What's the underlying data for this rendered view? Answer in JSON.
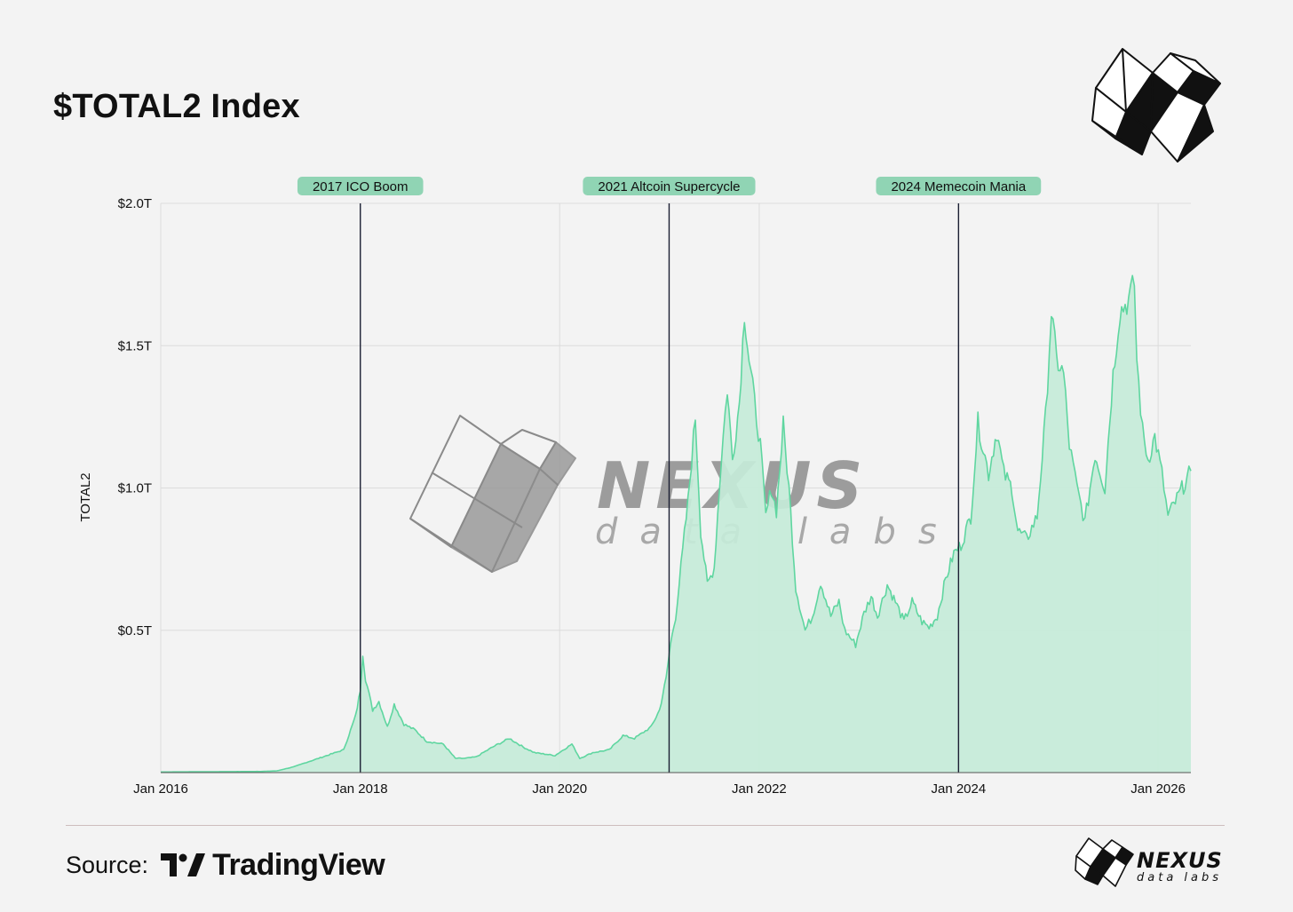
{
  "header": {
    "title": "$TOTAL2 Index"
  },
  "watermark": {
    "name": "NEXUS",
    "tagline": "data labs",
    "logo_icon": "nexus-cube-logo"
  },
  "footer": {
    "source_label": "Source:",
    "source_name": "TradingView",
    "source_icon": "tradingview-logo",
    "brand_name": "NEXUS",
    "brand_tagline": "data labs"
  },
  "colors": {
    "fill": "#c5ecd9",
    "line": "#5fd6a0",
    "annotation_bg": "#90d4b4",
    "event_line": "#1b1f33",
    "grid": "#dcdcdc"
  },
  "chart_data": {
    "type": "area",
    "title": "$TOTAL2 Index",
    "ylabel": "TOTAL2",
    "xlabel": "",
    "y_unit": "trillion USD",
    "ylim": [
      0,
      2.0
    ],
    "xlim": [
      "2016-01-01",
      "2026-05-01"
    ],
    "y_ticks": [
      {
        "value": 0.5,
        "label": "$0.5T"
      },
      {
        "value": 1.0,
        "label": "$1.0T"
      },
      {
        "value": 1.5,
        "label": "$1.5T"
      },
      {
        "value": 2.0,
        "label": "$2.0T"
      }
    ],
    "x_ticks": [
      {
        "date": "2016-01-01",
        "label": "Jan 2016"
      },
      {
        "date": "2018-01-01",
        "label": "Jan 2018"
      },
      {
        "date": "2020-01-01",
        "label": "Jan 2020"
      },
      {
        "date": "2022-01-01",
        "label": "Jan 2022"
      },
      {
        "date": "2024-01-01",
        "label": "Jan 2024"
      },
      {
        "date": "2026-01-01",
        "label": "Jan 2026"
      }
    ],
    "grid": true,
    "legend": "none",
    "annotations": [
      {
        "label": "2017 ICO Boom",
        "date": "2018-01-01"
      },
      {
        "label": "2021 Altcoin Supercycle",
        "date": "2021-02-05"
      },
      {
        "label": "2024 Memecoin Mania",
        "date": "2024-01-01"
      }
    ],
    "series": [
      {
        "points": [
          [
            "2016-01-01",
            0.002
          ],
          [
            "2016-06-01",
            0.003
          ],
          [
            "2017-01-01",
            0.004
          ],
          [
            "2017-03-01",
            0.006
          ],
          [
            "2017-05-01",
            0.02
          ],
          [
            "2017-07-01",
            0.04
          ],
          [
            "2017-09-01",
            0.06
          ],
          [
            "2017-11-01",
            0.08
          ],
          [
            "2017-12-15",
            0.2
          ],
          [
            "2018-01-01",
            0.29
          ],
          [
            "2018-01-10",
            0.42
          ],
          [
            "2018-01-20",
            0.33
          ],
          [
            "2018-02-15",
            0.22
          ],
          [
            "2018-03-10",
            0.25
          ],
          [
            "2018-04-10",
            0.16
          ],
          [
            "2018-05-05",
            0.24
          ],
          [
            "2018-06-10",
            0.17
          ],
          [
            "2018-07-20",
            0.15
          ],
          [
            "2018-09-01",
            0.11
          ],
          [
            "2018-11-01",
            0.1
          ],
          [
            "2018-12-15",
            0.05
          ],
          [
            "2019-01-20",
            0.05
          ],
          [
            "2019-03-01",
            0.055
          ],
          [
            "2019-05-01",
            0.09
          ],
          [
            "2019-07-01",
            0.12
          ],
          [
            "2019-08-20",
            0.09
          ],
          [
            "2019-10-01",
            0.07
          ],
          [
            "2019-12-15",
            0.06
          ],
          [
            "2020-02-15",
            0.1
          ],
          [
            "2020-03-15",
            0.05
          ],
          [
            "2020-05-01",
            0.07
          ],
          [
            "2020-07-01",
            0.08
          ],
          [
            "2020-08-20",
            0.13
          ],
          [
            "2020-10-01",
            0.12
          ],
          [
            "2020-12-01",
            0.16
          ],
          [
            "2021-01-01",
            0.22
          ],
          [
            "2021-01-25",
            0.33
          ],
          [
            "2021-02-10",
            0.45
          ],
          [
            "2021-03-01",
            0.55
          ],
          [
            "2021-04-15",
            0.95
          ],
          [
            "2021-05-12",
            1.25
          ],
          [
            "2021-06-01",
            0.85
          ],
          [
            "2021-06-25",
            0.66
          ],
          [
            "2021-07-20",
            0.72
          ],
          [
            "2021-08-15",
            1.1
          ],
          [
            "2021-09-06",
            1.35
          ],
          [
            "2021-09-25",
            1.1
          ],
          [
            "2021-10-20",
            1.3
          ],
          [
            "2021-11-08",
            1.62
          ],
          [
            "2021-11-25",
            1.45
          ],
          [
            "2021-12-15",
            1.3
          ],
          [
            "2022-01-05",
            1.15
          ],
          [
            "2022-01-25",
            0.9
          ],
          [
            "2022-02-15",
            1.0
          ],
          [
            "2022-03-05",
            0.92
          ],
          [
            "2022-03-30",
            1.22
          ],
          [
            "2022-04-20",
            1.0
          ],
          [
            "2022-05-15",
            0.65
          ],
          [
            "2022-06-18",
            0.5
          ],
          [
            "2022-07-15",
            0.55
          ],
          [
            "2022-08-14",
            0.67
          ],
          [
            "2022-09-20",
            0.55
          ],
          [
            "2022-10-20",
            0.6
          ],
          [
            "2022-11-10",
            0.5
          ],
          [
            "2022-12-20",
            0.45
          ],
          [
            "2023-01-20",
            0.56
          ],
          [
            "2023-02-15",
            0.62
          ],
          [
            "2023-03-10",
            0.55
          ],
          [
            "2023-04-15",
            0.66
          ],
          [
            "2023-05-15",
            0.6
          ],
          [
            "2023-06-15",
            0.53
          ],
          [
            "2023-07-15",
            0.6
          ],
          [
            "2023-08-20",
            0.53
          ],
          [
            "2023-09-15",
            0.51
          ],
          [
            "2023-10-15",
            0.55
          ],
          [
            "2023-11-15",
            0.68
          ],
          [
            "2023-12-15",
            0.77
          ],
          [
            "2024-01-10",
            0.8
          ],
          [
            "2024-02-15",
            0.9
          ],
          [
            "2024-03-12",
            1.23
          ],
          [
            "2024-04-20",
            1.05
          ],
          [
            "2024-05-20",
            1.2
          ],
          [
            "2024-06-15",
            1.05
          ],
          [
            "2024-07-15",
            1.0
          ],
          [
            "2024-08-05",
            0.85
          ],
          [
            "2024-09-06",
            0.82
          ],
          [
            "2024-10-15",
            0.9
          ],
          [
            "2024-11-15",
            1.25
          ],
          [
            "2024-12-06",
            1.62
          ],
          [
            "2024-12-25",
            1.45
          ],
          [
            "2025-01-20",
            1.4
          ],
          [
            "2025-02-10",
            1.15
          ],
          [
            "2025-03-10",
            1.0
          ],
          [
            "2025-04-08",
            0.88
          ],
          [
            "2025-05-15",
            1.12
          ],
          [
            "2025-06-20",
            1.0
          ],
          [
            "2025-07-20",
            1.4
          ],
          [
            "2025-08-14",
            1.62
          ],
          [
            "2025-09-15",
            1.66
          ],
          [
            "2025-10-06",
            1.72
          ],
          [
            "2025-10-15",
            1.45
          ],
          [
            "2025-11-05",
            1.2
          ],
          [
            "2025-11-25",
            1.1
          ],
          [
            "2025-12-20",
            1.18
          ],
          [
            "2026-01-15",
            1.05
          ],
          [
            "2026-02-06",
            0.9
          ],
          [
            "2026-03-05",
            0.95
          ],
          [
            "2026-04-10",
            1.02
          ],
          [
            "2026-05-01",
            1.06
          ]
        ]
      }
    ]
  }
}
